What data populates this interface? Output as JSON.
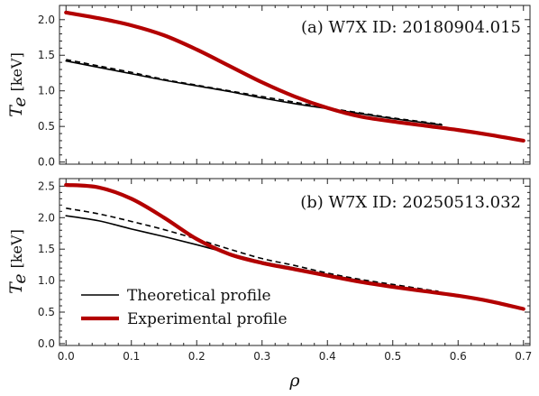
{
  "chart_data": [
    {
      "type": "line",
      "title": "(a) W7X ID: 20180904.015",
      "xlabel": "",
      "ylabel": "T",
      "ylabel_sub": "e",
      "ylabel_unit": "[keV]",
      "xlim": [
        -0.01,
        0.71
      ],
      "ylim": [
        -0.03,
        2.2
      ],
      "xticks": [
        0.0,
        0.1,
        0.2,
        0.3,
        0.4,
        0.5,
        0.6,
        0.7
      ],
      "yticks": [
        0.0,
        0.5,
        1.0,
        1.5,
        2.0
      ],
      "show_xtick_labels": false,
      "grid": false,
      "series": [
        {
          "name": "Experimental profile",
          "color": "#b30000",
          "style": "solid-thick",
          "x": [
            0.0,
            0.05,
            0.1,
            0.15,
            0.2,
            0.25,
            0.3,
            0.35,
            0.4,
            0.45,
            0.5,
            0.55,
            0.6,
            0.65,
            0.7
          ],
          "y": [
            2.1,
            2.02,
            1.92,
            1.78,
            1.58,
            1.35,
            1.12,
            0.92,
            0.76,
            0.64,
            0.57,
            0.51,
            0.45,
            0.38,
            0.3
          ]
        },
        {
          "name": "Theoretical profile",
          "color": "#000000",
          "style": "solid",
          "x": [
            0.0,
            0.05,
            0.1,
            0.15,
            0.2,
            0.25,
            0.3,
            0.35,
            0.4,
            0.45,
            0.5,
            0.55,
            0.575
          ],
          "y": [
            1.42,
            1.33,
            1.24,
            1.15,
            1.07,
            0.99,
            0.9,
            0.82,
            0.75,
            0.68,
            0.61,
            0.55,
            0.52
          ]
        },
        {
          "name": "",
          "color": "#000000",
          "style": "dashed",
          "x": [
            0.0,
            0.05,
            0.1,
            0.15,
            0.2,
            0.25,
            0.3,
            0.35,
            0.4,
            0.45,
            0.5,
            0.55,
            0.575
          ],
          "y": [
            1.44,
            1.35,
            1.26,
            1.16,
            1.08,
            1.0,
            0.92,
            0.84,
            0.76,
            0.69,
            0.62,
            0.56,
            0.53
          ]
        }
      ]
    },
    {
      "type": "line",
      "title": "(b) W7X ID: 20250513.032",
      "xlabel": "ρ",
      "ylabel": "T",
      "ylabel_sub": "e",
      "ylabel_unit": "[keV]",
      "xlim": [
        -0.01,
        0.71
      ],
      "ylim": [
        -0.03,
        2.62
      ],
      "xticks": [
        0.0,
        0.1,
        0.2,
        0.3,
        0.4,
        0.5,
        0.6,
        0.7
      ],
      "yticks": [
        0.0,
        0.5,
        1.0,
        1.5,
        2.0,
        2.5
      ],
      "show_xtick_labels": true,
      "grid": false,
      "legend_position": "bottom-left",
      "series": [
        {
          "name": "Experimental profile",
          "color": "#b30000",
          "style": "solid-thick",
          "x": [
            0.0,
            0.05,
            0.1,
            0.15,
            0.2,
            0.25,
            0.3,
            0.35,
            0.4,
            0.45,
            0.5,
            0.55,
            0.6,
            0.65,
            0.7
          ],
          "y": [
            2.52,
            2.48,
            2.3,
            2.0,
            1.66,
            1.42,
            1.28,
            1.18,
            1.08,
            0.98,
            0.9,
            0.83,
            0.76,
            0.67,
            0.55
          ]
        },
        {
          "name": "Theoretical profile",
          "color": "#000000",
          "style": "solid",
          "x": [
            0.0,
            0.05,
            0.1,
            0.15,
            0.2,
            0.25,
            0.3,
            0.35,
            0.4,
            0.45,
            0.5,
            0.55,
            0.57
          ],
          "y": [
            2.03,
            1.95,
            1.82,
            1.7,
            1.57,
            1.43,
            1.3,
            1.2,
            1.1,
            1.0,
            0.92,
            0.84,
            0.81
          ]
        },
        {
          "name": "",
          "color": "#000000",
          "style": "dashed",
          "x": [
            0.0,
            0.05,
            0.1,
            0.15,
            0.2,
            0.25,
            0.3,
            0.35,
            0.4,
            0.45,
            0.5,
            0.55,
            0.57
          ],
          "y": [
            2.15,
            2.06,
            1.94,
            1.81,
            1.66,
            1.5,
            1.35,
            1.24,
            1.12,
            1.02,
            0.94,
            0.86,
            0.83
          ]
        }
      ]
    }
  ],
  "legend": {
    "items": [
      {
        "label": "Theoretical profile",
        "color": "#000000",
        "style": "solid"
      },
      {
        "label": "Experimental profile",
        "color": "#b30000",
        "style": "solid-thick"
      }
    ]
  }
}
